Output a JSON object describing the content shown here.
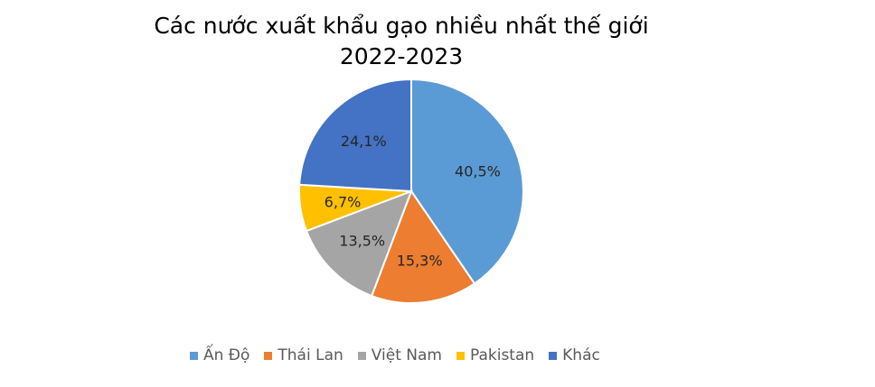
{
  "chart_data": {
    "type": "pie",
    "title_line1": "Các nước xuất khẩu gạo nhiều nhất thế giới",
    "title_line2": "2022-2023",
    "categories": [
      "Ấn Độ",
      "Thái Lan",
      "Việt Nam",
      "Pakistan",
      "Khác"
    ],
    "values": [
      40.5,
      15.3,
      13.5,
      6.7,
      24.1
    ],
    "labels": [
      "40,5%",
      "15,3%",
      "13,5%",
      "6,7%",
      "24,1%"
    ],
    "colors": [
      "#5B9BD5",
      "#ED7D31",
      "#A5A5A5",
      "#FFC000",
      "#4472C4"
    ],
    "legend_position": "bottom"
  }
}
